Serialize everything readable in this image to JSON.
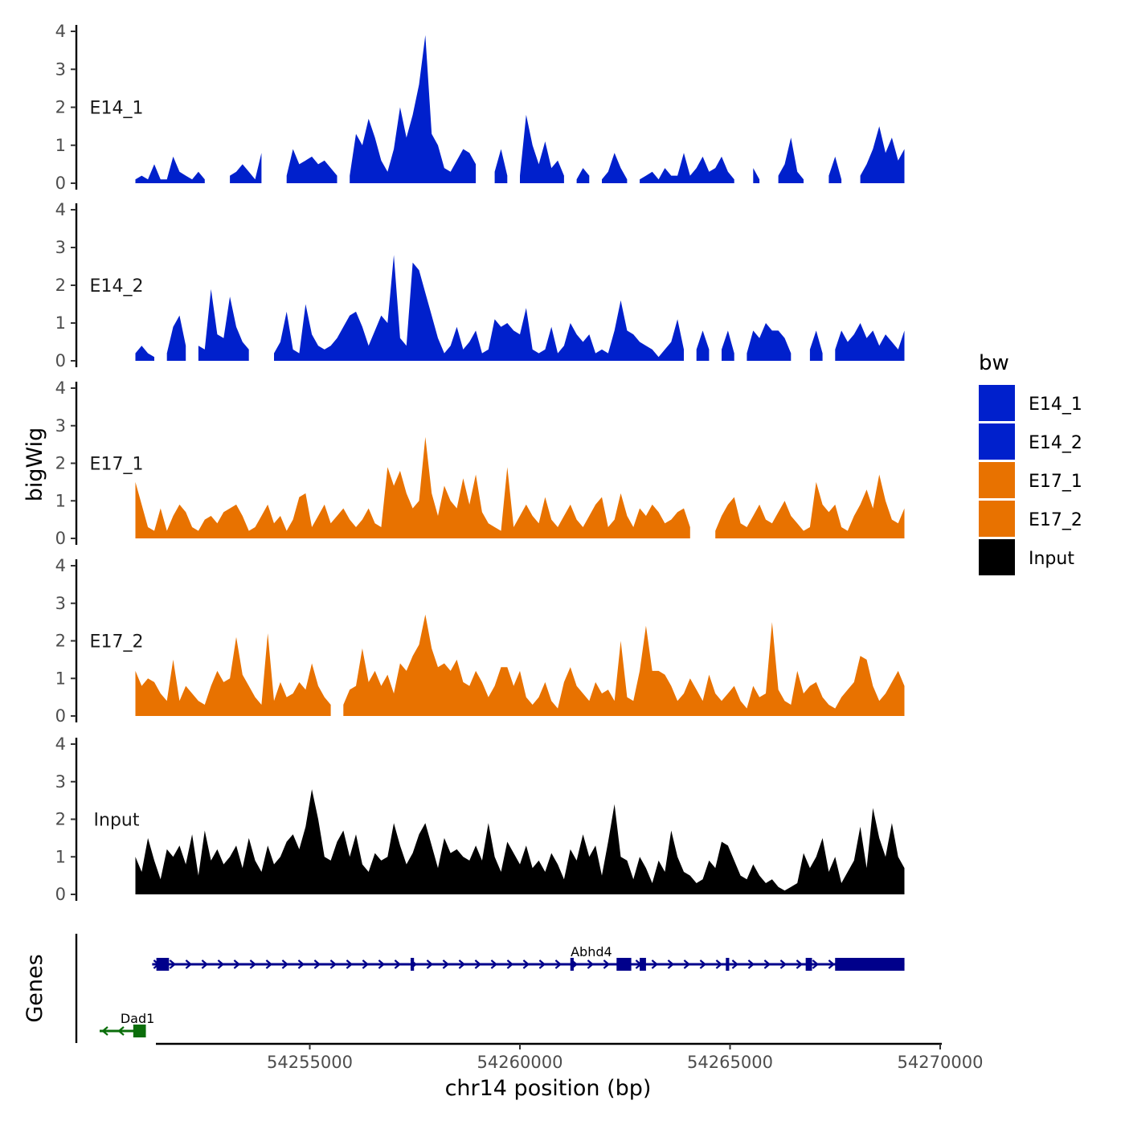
{
  "chart_data": {
    "type": "area",
    "xlabel": "chr14 position (bp)",
    "ylabel": "bigWig",
    "genes_label": "Genes",
    "xlim": [
      54250000,
      54270000
    ],
    "x_ticks": [
      54255000,
      54260000,
      54265000,
      54270000
    ],
    "x_tick_labels": [
      "54255000",
      "54260000",
      "54265000",
      "54270000"
    ],
    "ylim": [
      0,
      4
    ],
    "y_ticks": [
      0,
      1,
      2,
      3,
      4
    ],
    "y_tick_labels": [
      "0",
      "1",
      "2",
      "3",
      "4"
    ],
    "legend_title": "bw",
    "legend": [
      {
        "label": "E14_1",
        "color": "#0020CC"
      },
      {
        "label": "E14_2",
        "color": "#0020CC"
      },
      {
        "label": "E17_1",
        "color": "#E87200"
      },
      {
        "label": "E17_2",
        "color": "#E87200"
      },
      {
        "label": "Input",
        "color": "#000000"
      }
    ],
    "x": [
      54250850,
      54251000,
      54251150,
      54251300,
      54251450,
      54251600,
      54251750,
      54251900,
      54252050,
      54252200,
      54252350,
      54252500,
      54252650,
      54252800,
      54252950,
      54253100,
      54253250,
      54253400,
      54253550,
      54253700,
      54253850,
      54254000,
      54254150,
      54254300,
      54254450,
      54254600,
      54254750,
      54254900,
      54255050,
      54255200,
      54255350,
      54255500,
      54255650,
      54255800,
      54255950,
      54256100,
      54256250,
      54256400,
      54256550,
      54256700,
      54256850,
      54257000,
      54257150,
      54257300,
      54257450,
      54257600,
      54257750,
      54257900,
      54258050,
      54258200,
      54258350,
      54258500,
      54258650,
      54258800,
      54258950,
      54259100,
      54259250,
      54259400,
      54259550,
      54259700,
      54259850,
      54260000,
      54260150,
      54260300,
      54260450,
      54260600,
      54260750,
      54260900,
      54261050,
      54261200,
      54261350,
      54261500,
      54261650,
      54261800,
      54261950,
      54262100,
      54262250,
      54262400,
      54262550,
      54262700,
      54262850,
      54263000,
      54263150,
      54263300,
      54263450,
      54263600,
      54263750,
      54263900,
      54264050,
      54264200,
      54264350,
      54264500,
      54264650,
      54264800,
      54264950,
      54265100,
      54265250,
      54265400,
      54265550,
      54265700,
      54265850,
      54266000,
      54266150,
      54266300,
      54266450,
      54266600,
      54266750,
      54266900,
      54267050,
      54267200,
      54267350,
      54267500,
      54267650,
      54267800,
      54267950,
      54268100,
      54268250,
      54268400,
      54268550,
      54268700,
      54268850,
      54269000,
      54269150
    ],
    "series": [
      {
        "name": "E14_1",
        "values": [
          0.1,
          0.2,
          0.1,
          0.5,
          0.1,
          0.1,
          0.7,
          0.3,
          0.2,
          0.1,
          0.3,
          0.1,
          null,
          0.1,
          null,
          0.2,
          0.3,
          0.5,
          0.3,
          0.1,
          0.8,
          null,
          null,
          null,
          0.2,
          0.9,
          0.5,
          0.6,
          0.7,
          0.5,
          0.6,
          0.4,
          0.2,
          null,
          0.2,
          1.3,
          1.0,
          1.7,
          1.2,
          0.6,
          0.3,
          0.9,
          2.0,
          1.2,
          1.8,
          2.6,
          3.9,
          1.3,
          1.0,
          0.4,
          0.3,
          0.6,
          0.9,
          0.8,
          0.5,
          null,
          null,
          0.3,
          0.9,
          0.2,
          null,
          0.2,
          1.8,
          1.0,
          0.5,
          1.1,
          0.4,
          0.6,
          0.2,
          null,
          0.1,
          0.4,
          0.2,
          null,
          0.1,
          0.3,
          0.8,
          0.4,
          0.1,
          null,
          0.1,
          0.2,
          0.3,
          0.1,
          0.4,
          0.2,
          0.2,
          0.8,
          0.2,
          0.4,
          0.7,
          0.3,
          0.4,
          0.7,
          0.3,
          0.1,
          null,
          null,
          0.4,
          0.1,
          null,
          null,
          0.2,
          0.5,
          1.2,
          0.3,
          0.1,
          null,
          null,
          null,
          0.2,
          0.7,
          0.1,
          null,
          null,
          0.2,
          0.5,
          0.9,
          1.5,
          0.8,
          1.2,
          0.6,
          0.9
        ]
      },
      {
        "name": "E14_2",
        "values": [
          0.2,
          0.4,
          0.2,
          0.1,
          null,
          0.2,
          0.9,
          1.2,
          0.4,
          null,
          0.4,
          0.3,
          1.9,
          0.7,
          0.6,
          1.7,
          0.9,
          0.5,
          0.3,
          null,
          0.3,
          null,
          0.2,
          0.5,
          1.3,
          0.3,
          0.2,
          1.5,
          0.7,
          0.4,
          0.3,
          0.4,
          0.6,
          0.9,
          1.2,
          1.3,
          0.9,
          0.4,
          0.8,
          1.2,
          1.0,
          2.8,
          0.6,
          0.4,
          2.6,
          2.4,
          1.8,
          1.2,
          0.6,
          0.2,
          0.4,
          0.9,
          0.3,
          0.5,
          0.8,
          0.2,
          0.3,
          1.1,
          0.9,
          1.0,
          0.8,
          0.7,
          1.4,
          0.3,
          0.2,
          0.3,
          0.9,
          0.2,
          0.4,
          1.0,
          0.7,
          0.5,
          0.7,
          0.2,
          0.3,
          0.2,
          0.8,
          1.6,
          0.8,
          0.7,
          0.5,
          0.4,
          0.3,
          0.1,
          0.3,
          0.5,
          1.1,
          0.3,
          null,
          0.3,
          0.8,
          0.3,
          null,
          0.3,
          0.8,
          0.2,
          null,
          0.2,
          0.8,
          0.6,
          1.0,
          0.8,
          0.8,
          0.6,
          0.2,
          null,
          null,
          0.3,
          0.8,
          0.2,
          null,
          0.3,
          0.8,
          0.5,
          0.7,
          1.0,
          0.6,
          0.8,
          0.4,
          0.7,
          0.5,
          0.3,
          0.8
        ]
      },
      {
        "name": "E17_1",
        "values": [
          1.5,
          0.9,
          0.3,
          0.2,
          0.8,
          0.2,
          0.6,
          0.9,
          0.7,
          0.3,
          0.2,
          0.5,
          0.6,
          0.4,
          0.7,
          0.8,
          0.9,
          0.6,
          0.2,
          0.3,
          0.6,
          0.9,
          0.4,
          0.6,
          0.2,
          0.5,
          1.1,
          1.2,
          0.3,
          0.6,
          0.9,
          0.4,
          0.6,
          0.8,
          0.5,
          0.3,
          0.5,
          0.8,
          0.4,
          0.3,
          1.9,
          1.4,
          1.8,
          1.2,
          0.8,
          1.0,
          2.7,
          1.2,
          0.6,
          1.4,
          1.0,
          0.8,
          1.6,
          0.9,
          1.7,
          0.7,
          0.4,
          0.3,
          0.2,
          1.9,
          0.3,
          0.6,
          0.9,
          0.6,
          0.4,
          1.1,
          0.5,
          0.3,
          0.6,
          0.9,
          0.5,
          0.3,
          0.6,
          0.9,
          1.1,
          0.3,
          0.5,
          1.2,
          0.6,
          0.3,
          0.8,
          0.6,
          0.9,
          0.7,
          0.4,
          0.5,
          0.7,
          0.8,
          0.3,
          null,
          null,
          null,
          0.2,
          0.6,
          0.9,
          1.1,
          0.4,
          0.3,
          0.6,
          0.9,
          0.5,
          0.4,
          0.7,
          1.0,
          0.6,
          0.4,
          0.2,
          0.3,
          1.5,
          0.9,
          0.7,
          0.9,
          0.3,
          0.2,
          0.6,
          0.9,
          1.3,
          0.8,
          1.7,
          1.0,
          0.5,
          0.4,
          0.8
        ]
      },
      {
        "name": "E17_2",
        "values": [
          1.2,
          0.8,
          1.0,
          0.9,
          0.6,
          0.4,
          1.5,
          0.4,
          0.8,
          0.6,
          0.4,
          0.3,
          0.8,
          1.2,
          0.9,
          1.0,
          2.1,
          1.1,
          0.8,
          0.5,
          0.3,
          2.2,
          0.4,
          0.9,
          0.5,
          0.6,
          0.9,
          0.7,
          1.4,
          0.8,
          0.5,
          0.3,
          null,
          0.3,
          0.7,
          0.8,
          1.8,
          0.9,
          1.2,
          0.8,
          1.1,
          0.6,
          1.4,
          1.2,
          1.6,
          1.9,
          2.7,
          1.8,
          1.3,
          1.4,
          1.2,
          1.5,
          0.9,
          0.8,
          1.2,
          0.9,
          0.5,
          0.8,
          1.3,
          1.3,
          0.8,
          1.2,
          0.5,
          0.3,
          0.5,
          0.9,
          0.4,
          0.2,
          0.9,
          1.3,
          0.8,
          0.6,
          0.4,
          0.9,
          0.6,
          0.7,
          0.4,
          2.0,
          0.5,
          0.4,
          1.2,
          2.4,
          1.2,
          1.2,
          1.1,
          0.8,
          0.4,
          0.6,
          1.0,
          0.7,
          0.4,
          1.1,
          0.6,
          0.4,
          0.6,
          0.8,
          0.4,
          0.2,
          0.8,
          0.5,
          0.6,
          2.5,
          0.7,
          0.4,
          0.3,
          1.2,
          0.6,
          0.8,
          0.9,
          0.5,
          0.3,
          0.2,
          0.5,
          0.7,
          0.9,
          1.6,
          1.5,
          0.8,
          0.4,
          0.6,
          0.9,
          1.2,
          0.8
        ]
      },
      {
        "name": "Input",
        "values": [
          1.0,
          0.6,
          1.5,
          0.9,
          0.4,
          1.2,
          1.0,
          1.3,
          0.8,
          1.6,
          0.5,
          1.7,
          0.9,
          1.2,
          0.8,
          1.0,
          1.3,
          0.7,
          1.5,
          0.9,
          0.6,
          1.3,
          0.8,
          1.0,
          1.4,
          1.6,
          1.2,
          1.8,
          2.8,
          2.0,
          1.0,
          0.9,
          1.4,
          1.7,
          1.0,
          1.6,
          0.8,
          0.6,
          1.1,
          0.9,
          1.0,
          1.9,
          1.3,
          0.8,
          1.1,
          1.6,
          1.9,
          1.3,
          0.7,
          1.5,
          1.1,
          1.2,
          1.0,
          0.9,
          1.3,
          0.9,
          1.9,
          1.0,
          0.6,
          1.4,
          1.1,
          0.8,
          1.3,
          0.7,
          0.9,
          0.6,
          1.1,
          0.8,
          0.4,
          1.2,
          0.9,
          1.6,
          1.0,
          1.3,
          0.5,
          1.4,
          2.4,
          1.0,
          0.9,
          0.4,
          1.0,
          0.7,
          0.3,
          0.9,
          0.6,
          1.7,
          1.0,
          0.6,
          0.5,
          0.3,
          0.4,
          0.9,
          0.7,
          1.4,
          1.3,
          0.9,
          0.5,
          0.4,
          0.8,
          0.5,
          0.3,
          0.4,
          0.2,
          0.1,
          0.2,
          0.3,
          1.1,
          0.7,
          1.0,
          1.5,
          0.6,
          1.0,
          0.3,
          0.6,
          0.9,
          1.8,
          0.7,
          2.3,
          1.5,
          1.0,
          1.9,
          1.0,
          0.7
        ]
      }
    ],
    "genes": [
      {
        "name": "Dad1",
        "strand": "-",
        "color": "#0B6E0B",
        "start": 54250000,
        "end": 54251100,
        "exons": [
          [
            54250800,
            54251100
          ]
        ],
        "row": 2
      },
      {
        "name": "Abhd4",
        "strand": "+",
        "color": "#00008B",
        "start": 54251250,
        "end": 54269150,
        "exons": [
          [
            54251350,
            54251650
          ],
          [
            54257400,
            54257480
          ],
          [
            54261200,
            54261280
          ],
          [
            54262300,
            54262650
          ],
          [
            54262850,
            54263000
          ],
          [
            54264900,
            54264980
          ],
          [
            54266800,
            54266950
          ],
          [
            54267500,
            54269150
          ]
        ],
        "row": 1
      }
    ]
  }
}
